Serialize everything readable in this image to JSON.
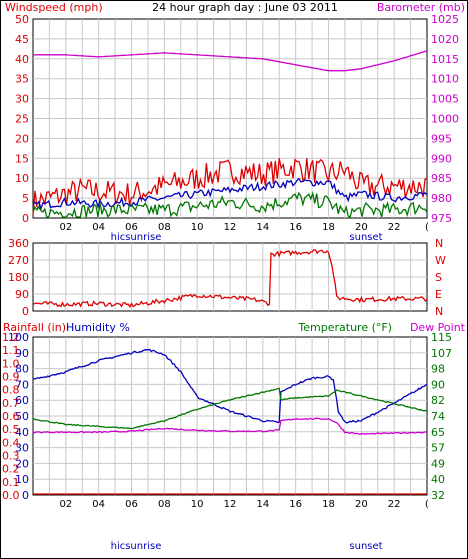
{
  "title": "24 hour graph day : June 03 2011",
  "hour_labels": [
    "02",
    "04",
    "06",
    "08",
    "10",
    "12",
    "14",
    "16",
    "18",
    "20",
    "22",
    "("
  ],
  "sun_labels": {
    "hisunrise": "hicsunrise",
    "sunset": "sunset"
  },
  "colors": {
    "red": "#dd0000",
    "blue": "#0000bb",
    "green": "#007700",
    "magenta": "#cc00cc",
    "grid": "#c8c8c8",
    "frame": "#000000"
  },
  "chart_data": [
    {
      "id": "wind_baro",
      "type": "line",
      "left_axis_label": "Windspeed (mph)",
      "right_axis_label": "Barometer (mb)",
      "left_ticks": [
        "0",
        "5",
        "10",
        "15",
        "20",
        "25",
        "30",
        "35",
        "40",
        "45",
        "50"
      ],
      "right_ticks": [
        "975",
        "980",
        "985",
        "990",
        "995",
        "1000",
        "1005",
        "1010",
        "1015",
        "1020",
        "1025"
      ],
      "ylim_left": [
        0,
        50
      ],
      "ylim_right": [
        975,
        1025
      ],
      "x_hours": [
        0,
        24
      ],
      "series": [
        {
          "color": "red",
          "axis": "left",
          "noise": 3.2,
          "x": [
            0,
            3,
            6,
            8,
            10,
            12,
            14,
            16,
            18,
            19,
            20,
            22,
            24
          ],
          "y": [
            4,
            7,
            6,
            8,
            10,
            12,
            11,
            13,
            11,
            12,
            8,
            8,
            8
          ]
        },
        {
          "color": "blue",
          "axis": "left",
          "noise": 1.0,
          "x": [
            0,
            2,
            4,
            6,
            8,
            10,
            12,
            14,
            16,
            18,
            19,
            20,
            22,
            24
          ],
          "y": [
            3,
            4,
            3.5,
            4,
            5,
            6,
            7,
            8,
            9,
            9,
            5,
            6,
            5,
            6
          ]
        },
        {
          "color": "green",
          "axis": "left",
          "noise": 1.8,
          "x": [
            0,
            4,
            8,
            10,
            12,
            14,
            16,
            18,
            19,
            20,
            22,
            24
          ],
          "y": [
            1,
            2,
            2,
            3,
            4,
            3,
            5,
            4,
            1,
            2,
            2,
            3
          ]
        },
        {
          "color": "magenta",
          "axis": "right",
          "noise": 0,
          "x": [
            0,
            2,
            4,
            6,
            8,
            10,
            12,
            14,
            16,
            18,
            19,
            20,
            22,
            24
          ],
          "y": [
            1016,
            1016,
            1015.5,
            1016,
            1016.5,
            1016,
            1015.5,
            1015,
            1013.5,
            1012,
            1012,
            1012.5,
            1014.5,
            1017
          ]
        }
      ]
    },
    {
      "id": "direction",
      "type": "line",
      "left_ticks": [
        "0",
        "90",
        "180",
        "270",
        "360"
      ],
      "right_ticks": [
        "N",
        "E",
        "S",
        "W",
        "N"
      ],
      "ylim": [
        0,
        360
      ],
      "x_hours": [
        0,
        24
      ],
      "series": [
        {
          "color": "red",
          "axis": "left",
          "noise": 12,
          "x": [
            0,
            2,
            4,
            6,
            8,
            10,
            12,
            13.5,
            14.4,
            14.5,
            16,
            18,
            18.3,
            18.5,
            20,
            22,
            24
          ],
          "y": [
            40,
            35,
            40,
            30,
            55,
            85,
            70,
            60,
            40,
            300,
            310,
            320,
            200,
            70,
            60,
            65,
            65
          ]
        }
      ]
    },
    {
      "id": "rain_hum_temp",
      "type": "line",
      "rain_label": "Rainfall (in)",
      "humidity_label": "Humidity %",
      "temperature_label": "Temperature (°F)",
      "dewpoint_label": "Dew Point",
      "rain_ticks": [
        "0.0",
        "0.1",
        "0.2",
        "0.3",
        "0.4",
        "0.5",
        "0.6",
        "0.7",
        "0.8",
        "0.9",
        "1.0",
        "1.1",
        "1.2"
      ],
      "humidity_ticks": [
        "0",
        "10",
        "20",
        "30",
        "40",
        "50",
        "60",
        "70",
        "80",
        "90",
        "100"
      ],
      "temp_ticks": [
        "32",
        "40",
        "49",
        "57",
        "65",
        "74",
        "82",
        "90",
        "98",
        "107",
        "115"
      ],
      "ylim_humidity": [
        0,
        100
      ],
      "ylim_temp": [
        32,
        115
      ],
      "x_hours": [
        0,
        24
      ],
      "series": [
        {
          "name": "humidity",
          "color": "blue",
          "scale": "humidity",
          "noise": 0.6,
          "x": [
            0,
            2,
            4,
            6,
            7,
            8,
            9,
            10,
            12,
            14,
            15,
            15.1,
            16,
            17,
            18,
            18.3,
            18.6,
            19,
            20,
            22,
            24
          ],
          "y": [
            73,
            78,
            85,
            90,
            92,
            89,
            78,
            62,
            53,
            47,
            46,
            65,
            70,
            74,
            75,
            73,
            53,
            46,
            47,
            58,
            70
          ]
        },
        {
          "name": "temperature",
          "color": "green",
          "scale": "temp",
          "noise": 0.3,
          "x": [
            0,
            2,
            4,
            6,
            8,
            10,
            12,
            14,
            15,
            15.1,
            16,
            18,
            18.5,
            19,
            20,
            22,
            24
          ],
          "y": [
            72,
            69,
            68,
            67,
            71,
            77,
            82,
            86,
            88,
            82,
            83,
            84,
            87,
            86,
            84,
            80,
            76
          ]
        },
        {
          "name": "dew_point",
          "color": "magenta",
          "scale": "temp",
          "noise": 0.3,
          "x": [
            0,
            2,
            4,
            6,
            8,
            10,
            12,
            14,
            15,
            15.1,
            16,
            18,
            18.5,
            19,
            20,
            22,
            24
          ],
          "y": [
            65,
            65,
            65,
            65.5,
            67,
            66,
            65.5,
            65.5,
            66,
            71,
            72,
            72,
            70,
            65,
            64,
            64.5,
            65
          ]
        },
        {
          "name": "rainfall",
          "color": "red",
          "scale": "humidity",
          "noise": 0,
          "x": [
            0,
            24
          ],
          "y": [
            0,
            0
          ]
        }
      ]
    }
  ]
}
